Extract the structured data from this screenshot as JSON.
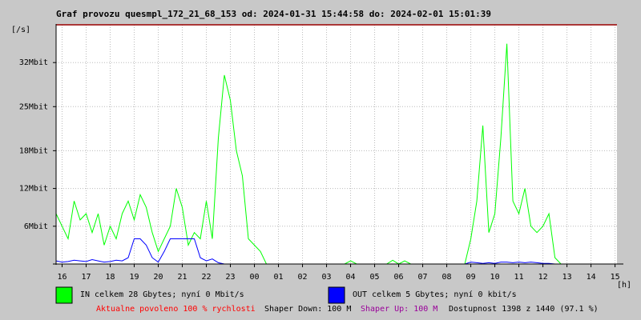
{
  "chart_data": {
    "type": "line",
    "title": "Graf provozu quesmpl_172_21_68_153 od: 2024-01-31 15:44:58 do: 2024-02-01 15:01:39",
    "y_label": "[/s]",
    "x_label": "[h]",
    "x": [
      15.75,
      16,
      16.25,
      16.5,
      16.75,
      17,
      17.25,
      17.5,
      17.75,
      18,
      18.25,
      18.5,
      18.75,
      19,
      19.25,
      19.5,
      19.75,
      20,
      20.25,
      20.5,
      20.75,
      21,
      21.25,
      21.5,
      21.75,
      22,
      22.25,
      22.5,
      22.75,
      23,
      23.25,
      23.5,
      23.75,
      24,
      24.25,
      24.5,
      24.75,
      25,
      25.25,
      25.5,
      25.75,
      26,
      26.25,
      26.5,
      26.75,
      27,
      27.25,
      27.5,
      27.75,
      28,
      28.25,
      28.5,
      28.75,
      29,
      29.25,
      29.5,
      29.75,
      30,
      30.25,
      30.5,
      30.75,
      31,
      31.25,
      31.5,
      31.75,
      32,
      32.25,
      32.5,
      32.75,
      33,
      33.25,
      33.5,
      33.75,
      34,
      34.25,
      34.5,
      34.75,
      35,
      35.25,
      35.5,
      35.75,
      36,
      36.25,
      36.5,
      36.75,
      37,
      37.25,
      37.5,
      37.75,
      38,
      38.25,
      38.5,
      38.75,
      39
    ],
    "series": [
      {
        "name": "IN celkem 28 Gbytes; nyní 0 Mbit/s",
        "color": "#00ff00",
        "values": [
          8,
          6,
          4,
          10,
          7,
          8,
          5,
          8,
          3,
          6,
          4,
          8,
          10,
          7,
          11,
          9,
          5,
          2,
          4,
          6,
          12,
          9,
          3,
          5,
          4,
          10,
          4,
          20,
          30,
          26,
          18,
          14,
          4,
          3,
          2,
          0,
          0,
          0,
          0,
          0,
          0,
          0,
          0,
          0,
          0,
          0,
          0,
          0,
          0,
          0.5,
          0,
          0,
          0,
          0,
          0,
          0,
          0.6,
          0,
          0.5,
          0,
          0,
          0,
          0,
          0,
          0,
          0,
          0,
          0,
          0,
          4,
          10,
          22,
          5,
          8,
          20,
          35,
          10,
          8,
          12,
          6,
          5,
          6,
          8,
          1,
          0,
          0,
          0,
          0,
          0,
          0,
          0,
          0,
          0,
          0
        ]
      },
      {
        "name": "OUT celkem 5 Gbytes; nyní 0 kbit/s",
        "color": "#0000ff",
        "values": [
          0.5,
          0.3,
          0.4,
          0.6,
          0.5,
          0.4,
          0.7,
          0.5,
          0.3,
          0.4,
          0.6,
          0.5,
          1,
          4,
          4,
          3,
          1,
          0.3,
          2,
          4,
          4,
          4,
          4,
          4,
          1,
          0.5,
          0.8,
          0.2,
          0,
          0,
          0,
          0,
          0,
          0,
          0,
          0,
          0,
          0,
          0,
          0,
          0,
          0,
          0,
          0,
          0,
          0,
          0,
          0,
          0,
          0,
          0,
          0,
          0,
          0,
          0,
          0,
          0,
          0,
          0,
          0,
          0,
          0,
          0,
          0,
          0,
          0,
          0,
          0,
          0,
          0.3,
          0.2,
          0.1,
          0.2,
          0.1,
          0.3,
          0.3,
          0.2,
          0.3,
          0.2,
          0.3,
          0.2,
          0.1,
          0.1,
          0,
          0,
          0,
          0,
          0,
          0,
          0,
          0,
          0,
          0,
          0
        ]
      }
    ],
    "xlim": [
      15.75,
      39.08
    ],
    "xticks": [
      {
        "value": 16,
        "label": "16"
      },
      {
        "value": 17,
        "label": "17"
      },
      {
        "value": 18,
        "label": "18"
      },
      {
        "value": 19,
        "label": "19"
      },
      {
        "value": 20,
        "label": "20"
      },
      {
        "value": 21,
        "label": "21"
      },
      {
        "value": 22,
        "label": "22"
      },
      {
        "value": 23,
        "label": "23"
      },
      {
        "value": 24,
        "label": "00"
      },
      {
        "value": 25,
        "label": "01"
      },
      {
        "value": 26,
        "label": "02"
      },
      {
        "value": 27,
        "label": "03"
      },
      {
        "value": 28,
        "label": "04"
      },
      {
        "value": 29,
        "label": "05"
      },
      {
        "value": 30,
        "label": "06"
      },
      {
        "value": 31,
        "label": "07"
      },
      {
        "value": 32,
        "label": "08"
      },
      {
        "value": 33,
        "label": "09"
      },
      {
        "value": 34,
        "label": "10"
      },
      {
        "value": 35,
        "label": "11"
      },
      {
        "value": 36,
        "label": "12"
      },
      {
        "value": 37,
        "label": "13"
      },
      {
        "value": 38,
        "label": "14"
      },
      {
        "value": 39,
        "label": "15"
      }
    ],
    "ylim": [
      0,
      38
    ],
    "yticks": [
      {
        "value": 6,
        "label": "6Mbit"
      },
      {
        "value": 12,
        "label": "12Mbit"
      },
      {
        "value": 18,
        "label": "18Mbit"
      },
      {
        "value": 25,
        "label": "25Mbit"
      },
      {
        "value": 32,
        "label": "32Mbit"
      }
    ],
    "grid": true,
    "footer": [
      {
        "text": "Aktualne povoleno 100 % rychlosti",
        "color": "#ff0000"
      },
      {
        "text": "Shaper Down: 100 M",
        "color": "#000000"
      },
      {
        "text": "Shaper Up: 100 M",
        "color": "#990099"
      },
      {
        "text": "Dostupnost 1398 z 1440 (97.1 %)",
        "color": "#000000"
      }
    ]
  }
}
